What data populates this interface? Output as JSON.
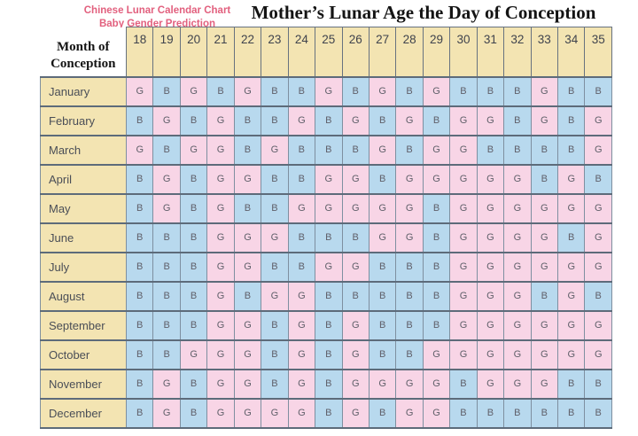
{
  "titles": {
    "subtitle_line1": "Chinese Lunar Calendar Chart",
    "subtitle_line2": "Baby Gender Prediction",
    "main_title": "Mother’s Lunar Age the Day of Conception"
  },
  "table": {
    "corner_line1": "Month of",
    "corner_line2": "Conception"
  },
  "colors": {
    "girl_pink": "#f8d5e6",
    "boy_blue": "#b8d9ee",
    "header_tan": "#f3e4b2",
    "subtitle_pink": "#e2607e",
    "grid_dark": "#5d6b7a",
    "grid_light": "#7e8fa0",
    "letter_gray": "#60606a"
  },
  "chart_data": {
    "type": "table",
    "title": "Mother’s Lunar Age the Day of Conception",
    "subtitle": "Chinese Lunar Calendar Chart – Baby Gender Prediction",
    "rows_label": "Month of Conception",
    "ages": [
      18,
      19,
      20,
      21,
      22,
      23,
      24,
      25,
      26,
      27,
      28,
      29,
      30,
      31,
      32,
      33,
      34,
      35
    ],
    "matrix": [
      {
        "month": "January",
        "values": [
          "G",
          "B",
          "G",
          "B",
          "G",
          "B",
          "B",
          "G",
          "B",
          "G",
          "B",
          "G",
          "B",
          "B",
          "B",
          "G",
          "B",
          "B"
        ]
      },
      {
        "month": "February",
        "values": [
          "B",
          "G",
          "B",
          "G",
          "B",
          "B",
          "G",
          "B",
          "G",
          "B",
          "G",
          "B",
          "G",
          "G",
          "B",
          "G",
          "B",
          "G"
        ]
      },
      {
        "month": "March",
        "values": [
          "G",
          "B",
          "G",
          "G",
          "B",
          "G",
          "B",
          "B",
          "B",
          "G",
          "B",
          "G",
          "G",
          "B",
          "B",
          "B",
          "B",
          "G"
        ]
      },
      {
        "month": "April",
        "values": [
          "B",
          "G",
          "B",
          "G",
          "G",
          "B",
          "B",
          "G",
          "G",
          "B",
          "G",
          "G",
          "G",
          "G",
          "G",
          "B",
          "G",
          "B"
        ]
      },
      {
        "month": "May",
        "values": [
          "B",
          "G",
          "B",
          "G",
          "B",
          "B",
          "G",
          "G",
          "G",
          "G",
          "G",
          "B",
          "G",
          "G",
          "G",
          "G",
          "G",
          "G"
        ]
      },
      {
        "month": "June",
        "values": [
          "B",
          "B",
          "B",
          "G",
          "G",
          "G",
          "B",
          "B",
          "B",
          "G",
          "G",
          "B",
          "G",
          "G",
          "G",
          "G",
          "B",
          "G"
        ]
      },
      {
        "month": "July",
        "values": [
          "B",
          "B",
          "B",
          "G",
          "G",
          "B",
          "B",
          "G",
          "G",
          "B",
          "B",
          "B",
          "G",
          "G",
          "G",
          "G",
          "G",
          "G"
        ]
      },
      {
        "month": "August",
        "values": [
          "B",
          "B",
          "B",
          "G",
          "B",
          "G",
          "G",
          "B",
          "B",
          "B",
          "B",
          "B",
          "G",
          "G",
          "G",
          "B",
          "G",
          "B"
        ]
      },
      {
        "month": "September",
        "values": [
          "B",
          "B",
          "B",
          "G",
          "G",
          "B",
          "G",
          "B",
          "G",
          "B",
          "B",
          "B",
          "G",
          "G",
          "G",
          "G",
          "G",
          "G"
        ]
      },
      {
        "month": "October",
        "values": [
          "B",
          "B",
          "G",
          "G",
          "G",
          "B",
          "G",
          "B",
          "G",
          "B",
          "B",
          "G",
          "G",
          "G",
          "G",
          "G",
          "G",
          "G"
        ]
      },
      {
        "month": "November",
        "values": [
          "B",
          "G",
          "B",
          "G",
          "G",
          "B",
          "G",
          "B",
          "G",
          "G",
          "G",
          "G",
          "B",
          "G",
          "G",
          "G",
          "B",
          "B"
        ]
      },
      {
        "month": "December",
        "values": [
          "B",
          "G",
          "B",
          "G",
          "G",
          "G",
          "G",
          "B",
          "G",
          "B",
          "G",
          "G",
          "B",
          "B",
          "B",
          "B",
          "B",
          "B"
        ]
      }
    ]
  }
}
